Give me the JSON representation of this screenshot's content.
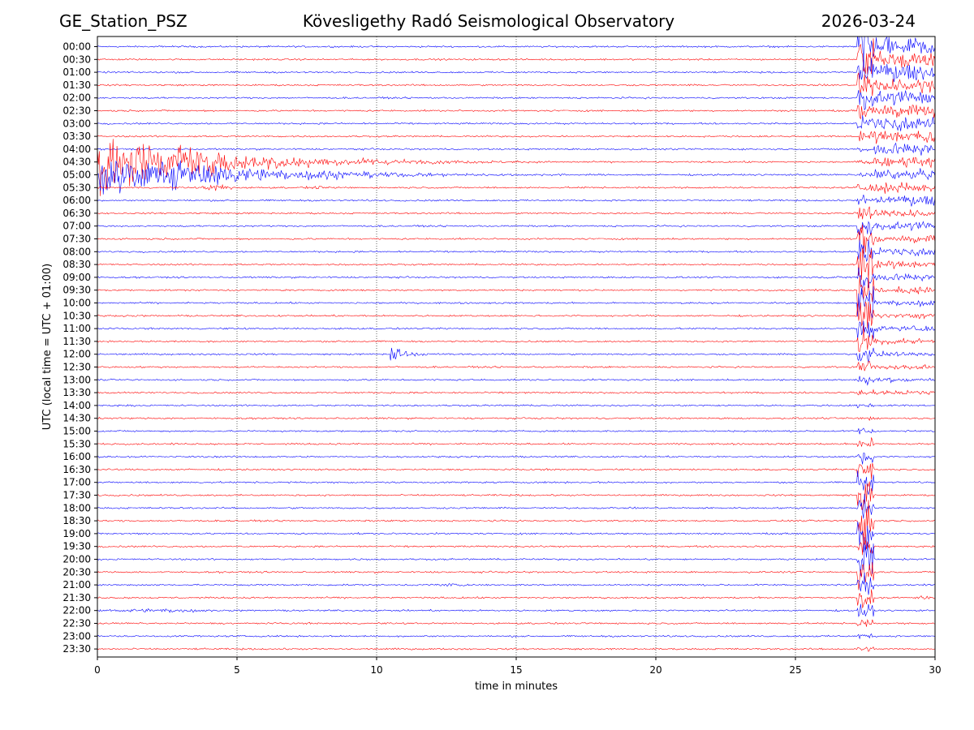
{
  "header": {
    "station": "GE_Station_PSZ",
    "observatory": "Kövesligethy Radó Seismological Observatory",
    "date": "2026-03-24"
  },
  "chart_data": {
    "type": "line",
    "title": "Kövesligethy Radó Seismological Observatory",
    "xlabel": "time in minutes",
    "ylabel": "UTC (local time = UTC + 01:00)",
    "xlim": [
      0,
      30
    ],
    "x_ticks": [
      0,
      5,
      10,
      15,
      20,
      25,
      30
    ],
    "grid": {
      "x": "dotted",
      "y": false
    },
    "trace_colors": [
      "#0000ff",
      "#ff0000"
    ],
    "traces": [
      "00:00",
      "00:30",
      "01:00",
      "01:30",
      "02:00",
      "02:30",
      "03:00",
      "03:30",
      "04:00",
      "04:30",
      "05:00",
      "05:30",
      "06:00",
      "06:30",
      "07:00",
      "07:30",
      "08:00",
      "08:30",
      "09:00",
      "09:30",
      "10:00",
      "10:30",
      "11:00",
      "11:30",
      "12:00",
      "12:30",
      "13:00",
      "13:30",
      "14:00",
      "14:30",
      "15:00",
      "15:30",
      "16:00",
      "16:30",
      "17:00",
      "17:30",
      "18:00",
      "18:30",
      "19:00",
      "19:30",
      "20:00",
      "20:30",
      "21:00",
      "21:30",
      "22:00",
      "22:30",
      "23:00",
      "23:30"
    ],
    "events": [
      {
        "trace": "00:00",
        "onset_min": 1.8,
        "end_min": 2.5,
        "amplitude": 0.2,
        "kind": "burst"
      },
      {
        "trace": "00:30",
        "onset_min": 19.8,
        "end_min": 20.3,
        "amplitude": 0.12,
        "kind": "burst"
      },
      {
        "trace": "04:30",
        "onset_min": 0.0,
        "end_min": 16.5,
        "amplitude": 9.5,
        "kind": "earthquake"
      },
      {
        "trace": "05:00",
        "onset_min": 0.0,
        "end_min": 18.0,
        "amplitude": 7.0,
        "kind": "earthquake"
      },
      {
        "trace": "05:30",
        "onset_min": 3.6,
        "end_min": 5.0,
        "amplitude": 0.9,
        "kind": "burst"
      },
      {
        "trace": "05:30",
        "onset_min": 7.4,
        "end_min": 8.2,
        "amplitude": 0.4,
        "kind": "burst"
      },
      {
        "trace": "09:00",
        "onset_min": 25.8,
        "end_min": 27.0,
        "amplitude": 0.2,
        "kind": "burst"
      },
      {
        "trace": "12:00",
        "onset_min": 10.5,
        "end_min": 12.5,
        "amplitude": 3.2,
        "kind": "earthquake"
      },
      {
        "trace": "21:00",
        "onset_min": 11.6,
        "end_min": 13.5,
        "amplitude": 0.35,
        "kind": "burst"
      },
      {
        "trace": "21:30",
        "onset_min": 29.1,
        "end_min": 30.0,
        "amplitude": 0.5,
        "kind": "burst"
      },
      {
        "trace": "22:00",
        "onset_min": 0.0,
        "end_min": 4.5,
        "amplitude": 0.55,
        "kind": "burst"
      },
      {
        "trace": "22:30",
        "onset_min": 17.4,
        "end_min": 18.5,
        "amplitude": 0.2,
        "kind": "burst"
      },
      {
        "trace": "00:00",
        "onset_min": 27.2,
        "end_min": 30.0,
        "amplitude": 30,
        "kind": "large_earthquake",
        "continues_next_day": true
      }
    ]
  }
}
